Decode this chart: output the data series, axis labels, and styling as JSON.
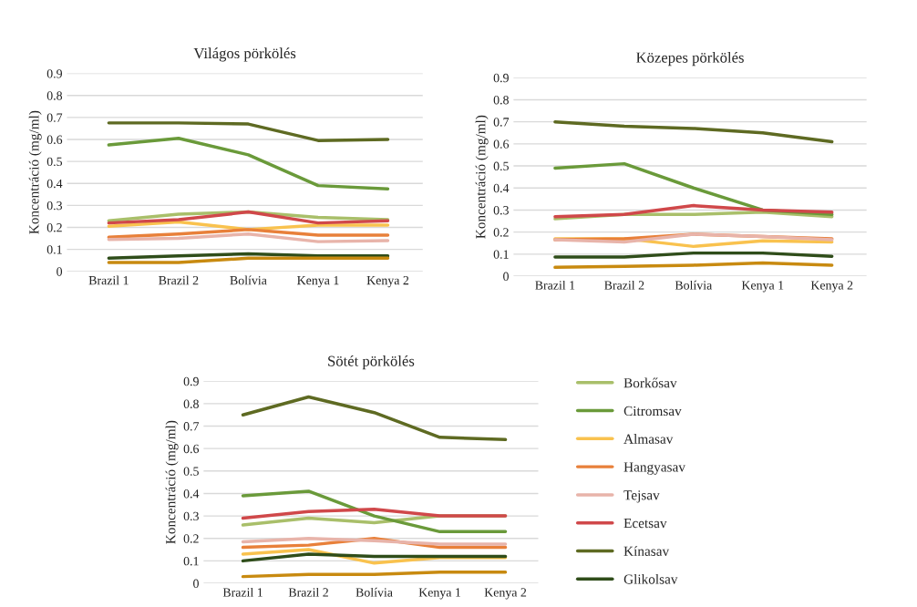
{
  "chart_data": [
    {
      "type": "line",
      "title": "Világos pörkölés",
      "ylabel": "Koncentráció (mg/ml)",
      "categories": [
        "Brazil 1",
        "Brazil 2",
        "Bolívia",
        "Kenya 1",
        "Kenya 2"
      ],
      "ylim": [
        0,
        0.9
      ],
      "yticks": [
        0,
        0.1,
        0.2,
        0.3,
        0.4,
        0.5,
        0.6,
        0.7,
        0.8,
        0.9
      ],
      "grid": "y",
      "legend": false,
      "marker": "none",
      "line_style": "solid",
      "series": [
        {
          "color": "#a9bf6a",
          "values": [
            0.23,
            0.26,
            0.27,
            0.245,
            0.235
          ]
        },
        {
          "color": "#6a9a3a",
          "values": [
            0.575,
            0.605,
            0.53,
            0.39,
            0.375
          ]
        },
        {
          "color": "#f9c24e",
          "values": [
            0.205,
            0.225,
            0.19,
            0.21,
            0.21
          ]
        },
        {
          "color": "#e8803a",
          "values": [
            0.155,
            0.17,
            0.19,
            0.165,
            0.165
          ]
        },
        {
          "color": "#e8b4aa",
          "values": [
            0.145,
            0.15,
            0.17,
            0.135,
            0.14
          ]
        },
        {
          "color": "#d0484a",
          "values": [
            0.22,
            0.235,
            0.27,
            0.22,
            0.23
          ]
        },
        {
          "color": "#5e6a22",
          "values": [
            0.675,
            0.675,
            0.67,
            0.595,
            0.6
          ]
        },
        {
          "color": "#2f4d1a",
          "values": [
            0.06,
            0.07,
            0.08,
            0.07,
            0.07
          ]
        },
        {
          "color": "#c88a10",
          "values": [
            0.04,
            0.04,
            0.06,
            0.06,
            0.06
          ]
        }
      ]
    },
    {
      "type": "line",
      "title": "Közepes pörkölés",
      "ylabel": "Koncentráció (mg/ml)",
      "categories": [
        "Brazil 1",
        "Brazil 2",
        "Bolívia",
        "Kenya 1",
        "Kenya 2"
      ],
      "ylim": [
        0,
        0.9
      ],
      "yticks": [
        0,
        0.1,
        0.2,
        0.3,
        0.4,
        0.5,
        0.6,
        0.7,
        0.8,
        0.9
      ],
      "grid": "y",
      "legend": false,
      "marker": "none",
      "line_style": "solid",
      "series": [
        {
          "color": "#a9bf6a",
          "values": [
            0.26,
            0.28,
            0.28,
            0.29,
            0.27
          ]
        },
        {
          "color": "#6a9a3a",
          "values": [
            0.49,
            0.51,
            0.4,
            0.3,
            0.28
          ]
        },
        {
          "color": "#f9c24e",
          "values": [
            0.17,
            0.17,
            0.135,
            0.16,
            0.155
          ]
        },
        {
          "color": "#e8803a",
          "values": [
            0.165,
            0.17,
            0.19,
            0.18,
            0.17
          ]
        },
        {
          "color": "#e8b4aa",
          "values": [
            0.165,
            0.155,
            0.19,
            0.18,
            0.165
          ]
        },
        {
          "color": "#d0484a",
          "values": [
            0.27,
            0.28,
            0.32,
            0.3,
            0.29
          ]
        },
        {
          "color": "#5e6a22",
          "values": [
            0.7,
            0.68,
            0.67,
            0.65,
            0.61
          ]
        },
        {
          "color": "#2f4d1a",
          "values": [
            0.087,
            0.087,
            0.105,
            0.105,
            0.09
          ]
        },
        {
          "color": "#c88a10",
          "values": [
            0.04,
            0.045,
            0.05,
            0.06,
            0.05
          ]
        }
      ]
    },
    {
      "type": "line",
      "title": "Sötét pörkölés",
      "ylabel": "Koncentráció (mg/ml)",
      "categories": [
        "Brazil 1",
        "Brazil 2",
        "Bolívia",
        "Kenya 1",
        "Kenya 2"
      ],
      "ylim": [
        0,
        0.9
      ],
      "yticks": [
        0,
        0.1,
        0.2,
        0.3,
        0.4,
        0.5,
        0.6,
        0.7,
        0.8,
        0.9
      ],
      "grid": "y",
      "legend": "right",
      "marker": "none",
      "line_style": "solid",
      "series": [
        {
          "name": "Borkősav",
          "color": "#a9bf6a",
          "values": [
            0.26,
            0.29,
            0.27,
            0.3,
            0.3
          ]
        },
        {
          "name": "Citromsav",
          "color": "#6a9a3a",
          "values": [
            0.39,
            0.41,
            0.3,
            0.23,
            0.23
          ]
        },
        {
          "name": "Almasav",
          "color": "#f9c24e",
          "values": [
            0.13,
            0.15,
            0.09,
            0.115,
            0.115
          ]
        },
        {
          "name": "Hangyasav",
          "color": "#e8803a",
          "values": [
            0.16,
            0.17,
            0.2,
            0.16,
            0.16
          ]
        },
        {
          "name": "Tejsav",
          "color": "#e8b4aa",
          "values": [
            0.185,
            0.2,
            0.19,
            0.175,
            0.175
          ]
        },
        {
          "name": "Ecetsav",
          "color": "#d0484a",
          "values": [
            0.29,
            0.32,
            0.33,
            0.3,
            0.3
          ]
        },
        {
          "name": "Kínasav",
          "color": "#5e6a22",
          "values": [
            0.75,
            0.83,
            0.76,
            0.65,
            0.64
          ]
        },
        {
          "name": "Glikolsav",
          "color": "#2f4d1a",
          "values": [
            0.1,
            0.13,
            0.12,
            0.12,
            0.12
          ]
        },
        {
          "color": "#c88a10",
          "values": [
            0.03,
            0.04,
            0.04,
            0.05,
            0.05
          ]
        }
      ]
    }
  ]
}
